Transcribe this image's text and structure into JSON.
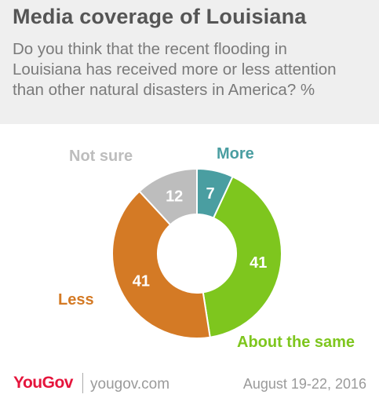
{
  "title": "Media coverage of Louisiana",
  "subtitle": "Do you think that the recent flooding in Louisiana has received more or less attention than other natural disasters in America? %",
  "footer": {
    "logo": "YouGov",
    "site": "yougov.com",
    "date": "August 19-22, 2016"
  },
  "chart_data": {
    "type": "pie",
    "donut": true,
    "categories": [
      "More",
      "About the same",
      "Less",
      "Not sure"
    ],
    "values": [
      7,
      41,
      41,
      12
    ],
    "colors": [
      "#4a9ea1",
      "#7ec61e",
      "#d47a25",
      "#bdbdbd"
    ]
  }
}
